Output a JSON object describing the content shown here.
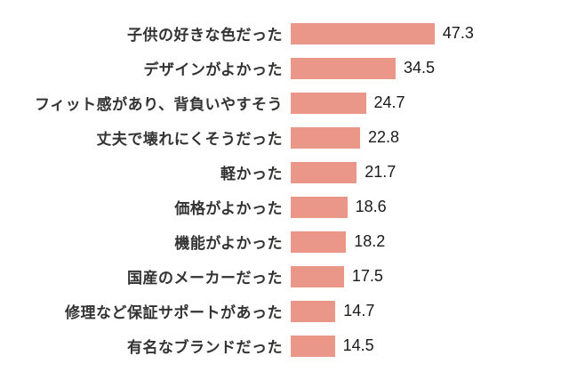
{
  "chart_data": {
    "type": "bar",
    "orientation": "horizontal",
    "title": "",
    "xlabel": "",
    "ylabel": "",
    "categories": [
      "子供の好きな色だった",
      "デザインがよかった",
      "フィット感があり、背負いやすそう",
      "丈夫で壊れにくそうだった",
      "軽かった",
      "価格がよかった",
      "機能がよかった",
      "国産のメーカーだった",
      "修理など保証サポートがあった",
      "有名なブランドだった"
    ],
    "values": [
      47.3,
      34.5,
      24.7,
      22.8,
      21.7,
      18.6,
      18.2,
      17.5,
      14.7,
      14.5
    ],
    "value_labels": [
      "47.3",
      "34.5",
      "24.7",
      "22.8",
      "21.7",
      "18.6",
      "18.2",
      "17.5",
      "14.7",
      "14.5"
    ],
    "xlim": [
      0,
      50
    ],
    "grid": false,
    "legend": false,
    "bar_color": "#EA9689",
    "category_label_color": "#333333",
    "value_label_color": "#1a1a1a",
    "background_color": "#ffffff"
  }
}
